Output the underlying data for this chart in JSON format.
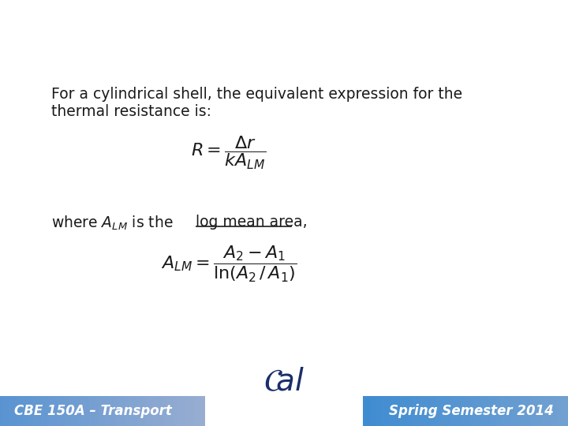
{
  "background_color": "#ffffff",
  "text_line1": "For a cylindrical shell, the equivalent expression for the",
  "text_line2": "thermal resistance is:",
  "formula1": "$R = \\dfrac{\\Delta r}{kA_{LM}}$",
  "where_part1": "where $A_{LM}$ is the ",
  "where_part2": "log mean area,",
  "formula2": "$A_{LM} = \\dfrac{A_2 - A_1}{\\ln(A_2\\, /\\, A_1)}$",
  "footer_left": "CBE 150A – Transport",
  "footer_right": "Spring Semester 2014",
  "footer_bg_left": "#7aaad4",
  "footer_bg_right": "#4a8fd4",
  "footer_text_color": "#ffffff",
  "text_color": "#1a1a1a",
  "text_fontsize": 13.5,
  "formula_fontsize": 16,
  "where_fontsize": 13.5,
  "footer_fontsize": 12
}
